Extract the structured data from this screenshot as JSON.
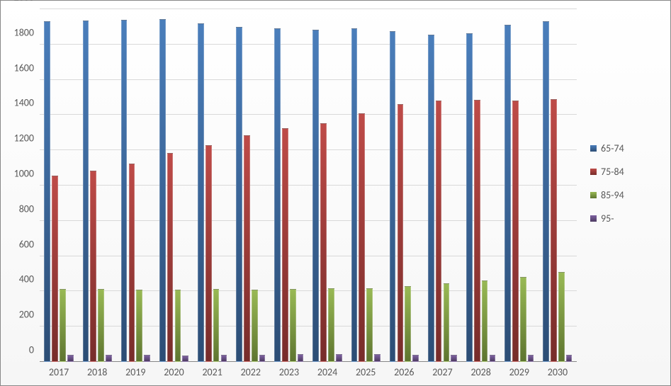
{
  "chart": {
    "type": "bar",
    "background_gradient": [
      "#ffffff",
      "#f6f6f6"
    ],
    "border_color": "#888888",
    "grid_color": "#d9d9d9",
    "axis_color": "#878787",
    "label_color": "#595959",
    "label_fontsize": 14,
    "ylim": [
      0,
      2000
    ],
    "ytick_step": 200,
    "categories": [
      "2017",
      "2018",
      "2019",
      "2020",
      "2021",
      "2022",
      "2023",
      "2024",
      "2025",
      "2026",
      "2027",
      "2028",
      "2029",
      "2030"
    ],
    "series": [
      {
        "name": "65-74",
        "color_top": "#4a7ebb",
        "color_bottom": "#2c4d75",
        "values": [
          1930,
          1935,
          1940,
          1945,
          1920,
          1900,
          1890,
          1885,
          1890,
          1875,
          1855,
          1865,
          1910,
          1930
        ]
      },
      {
        "name": "75-84",
        "color_top": "#be4b48",
        "color_bottom": "#772c2a",
        "values": [
          1055,
          1085,
          1125,
          1185,
          1230,
          1285,
          1325,
          1355,
          1410,
          1460,
          1480,
          1485,
          1480,
          1490
        ]
      },
      {
        "name": "85-94",
        "color_top": "#98b954",
        "color_bottom": "#5e7530",
        "values": [
          415,
          415,
          410,
          410,
          412,
          408,
          415,
          418,
          418,
          428,
          445,
          460,
          480,
          510
        ]
      },
      {
        "name": "95-",
        "color_top": "#7d60a0",
        "color_bottom": "#4d3b62",
        "values": [
          42,
          42,
          40,
          38,
          40,
          42,
          45,
          45,
          45,
          42,
          40,
          42,
          40,
          40
        ]
      }
    ],
    "group_padding": 0.12,
    "bar_gap": 0.04
  }
}
